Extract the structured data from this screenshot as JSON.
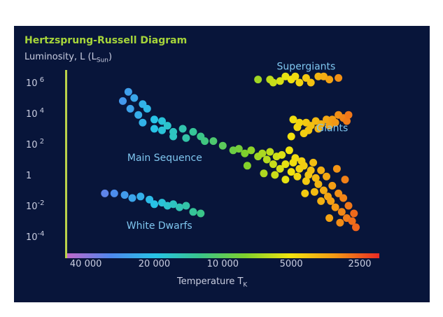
{
  "chart_data": {
    "type": "scatter",
    "title": "Hertzsprung-Russell Diagram",
    "ylabel": {
      "text": "Luminosity, L (L",
      "sub": "Sun",
      "close": ")"
    },
    "xlabel": {
      "text": "Temperature T",
      "sub": "K"
    },
    "x_scale": "log, reversed",
    "y_scale": "log",
    "x_ticks": [
      {
        "value": 40000,
        "label": "40 000"
      },
      {
        "value": 20000,
        "label": "20 000"
      },
      {
        "value": 10000,
        "label": "10 000"
      },
      {
        "value": 5000,
        "label": "5000"
      },
      {
        "value": 2500,
        "label": "2500"
      }
    ],
    "y_ticks": [
      {
        "value": 1000000,
        "base": "10",
        "exp": "6"
      },
      {
        "value": 10000,
        "base": "10",
        "exp": "4"
      },
      {
        "value": 100,
        "base": "10",
        "exp": "2"
      },
      {
        "value": 1,
        "base": "1",
        "exp": ""
      },
      {
        "value": 0.01,
        "base": "10",
        "exp": "-2"
      },
      {
        "value": 0.0001,
        "base": "10",
        "exp": "-4"
      }
    ],
    "colorbar": [
      "#c266c9",
      "#4f88ee",
      "#27c3e6",
      "#39c58a",
      "#7ed02d",
      "#f1e40f",
      "#f39a14",
      "#ea2a24"
    ],
    "annotations": [
      {
        "text": "Supergiants",
        "x": 4300,
        "logL": 6.85
      },
      {
        "text": "Giants",
        "x": 3300,
        "logL": 2.85
      },
      {
        "text": "Main Sequence",
        "x": 18000,
        "logL": 0.9
      },
      {
        "text": "White Dwarfs",
        "x": 19000,
        "logL": -3.5
      }
    ],
    "series": [
      {
        "points": [
          [
            26000,
            5.4
          ],
          [
            24500,
            5.0
          ],
          [
            27500,
            4.8
          ],
          [
            22500,
            4.6
          ],
          [
            25500,
            4.3
          ],
          [
            21500,
            4.3
          ],
          [
            23500,
            3.9
          ],
          [
            20000,
            3.6
          ],
          [
            22500,
            3.4
          ],
          [
            18500,
            3.5
          ],
          [
            17500,
            3.2
          ],
          [
            20000,
            3.0
          ],
          [
            18500,
            2.9
          ],
          [
            16500,
            2.8
          ],
          [
            15000,
            3.0
          ],
          [
            16500,
            2.5
          ],
          [
            14500,
            2.4
          ],
          [
            13500,
            2.8
          ],
          [
            12500,
            2.5
          ],
          [
            12000,
            2.2
          ],
          [
            11000,
            2.2
          ],
          [
            10000,
            1.9
          ],
          [
            9000,
            1.6
          ],
          [
            8500,
            1.7
          ],
          [
            8000,
            1.4
          ],
          [
            7500,
            1.6
          ],
          [
            7000,
            1.2
          ],
          [
            6700,
            1.4
          ],
          [
            6400,
            1.0
          ],
          [
            6200,
            1.5
          ],
          [
            6000,
            0.7
          ],
          [
            5800,
            1.2
          ],
          [
            5600,
            0.4
          ],
          [
            5500,
            1.3
          ],
          [
            5300,
            0.7
          ],
          [
            5100,
            1.6
          ],
          [
            5000,
            0.2
          ],
          [
            4900,
            0.8
          ],
          [
            4800,
            1.1
          ],
          [
            4700,
            -0.1
          ],
          [
            4600,
            0.4
          ],
          [
            4500,
            0.9
          ],
          [
            4400,
            0.6
          ],
          [
            4300,
            -0.4
          ],
          [
            4200,
            0.0
          ],
          [
            4100,
            0.3
          ],
          [
            4000,
            0.8
          ],
          [
            3900,
            -0.2
          ],
          [
            3800,
            -0.6
          ],
          [
            3700,
            0.3
          ],
          [
            3600,
            -1.0
          ],
          [
            3500,
            -0.1
          ],
          [
            3450,
            -1.4
          ],
          [
            3350,
            -1.7
          ],
          [
            3300,
            -0.7
          ],
          [
            3200,
            -2.1
          ],
          [
            3100,
            -1.2
          ],
          [
            3000,
            -2.4
          ],
          [
            2950,
            -1.5
          ],
          [
            2850,
            -2.8
          ],
          [
            2800,
            -2.0
          ],
          [
            2700,
            -3.0
          ],
          [
            2650,
            -2.5
          ],
          [
            2600,
            -3.4
          ],
          [
            3150,
            0.4
          ],
          [
            2900,
            -0.3
          ],
          [
            3950,
            -1.1
          ],
          [
            5900,
            0.0
          ],
          [
            4350,
            -1.2
          ],
          [
            7800,
            0.6
          ],
          [
            6600,
            0.1
          ],
          [
            5300,
            -0.3
          ],
          [
            3700,
            -1.7
          ],
          [
            3400,
            -2.8
          ],
          [
            3050,
            -3.1
          ]
        ]
      },
      {
        "points": [
          [
            7000,
            6.2
          ],
          [
            6200,
            6.2
          ],
          [
            5600,
            6.1
          ],
          [
            5300,
            6.4
          ],
          [
            5000,
            6.2
          ],
          [
            4800,
            6.4
          ],
          [
            4600,
            6.0
          ],
          [
            4300,
            6.3
          ],
          [
            4100,
            6.0
          ],
          [
            3800,
            6.4
          ],
          [
            3600,
            6.4
          ],
          [
            3400,
            6.2
          ],
          [
            3100,
            6.3
          ],
          [
            6000,
            6.0
          ]
        ]
      },
      {
        "points": [
          [
            4900,
            3.6
          ],
          [
            4700,
            3.1
          ],
          [
            4600,
            3.4
          ],
          [
            4300,
            3.4
          ],
          [
            4200,
            2.9
          ],
          [
            4100,
            3.2
          ],
          [
            3900,
            3.5
          ],
          [
            3800,
            3.0
          ],
          [
            3700,
            3.3
          ],
          [
            3500,
            3.6
          ],
          [
            3400,
            3.2
          ],
          [
            3300,
            3.6
          ],
          [
            3200,
            3.4
          ],
          [
            3100,
            3.9
          ],
          [
            2950,
            3.7
          ],
          [
            2850,
            3.5
          ],
          [
            2800,
            3.9
          ],
          [
            5000,
            2.5
          ],
          [
            4400,
            2.7
          ]
        ]
      },
      {
        "points": [
          [
            33000,
            -1.2
          ],
          [
            30000,
            -1.2
          ],
          [
            27000,
            -1.3
          ],
          [
            25000,
            -1.5
          ],
          [
            23000,
            -1.4
          ],
          [
            21000,
            -1.6
          ],
          [
            20000,
            -1.9
          ],
          [
            18500,
            -1.8
          ],
          [
            17500,
            -2.0
          ],
          [
            16500,
            -1.9
          ],
          [
            15500,
            -2.1
          ],
          [
            14500,
            -2.0
          ],
          [
            13500,
            -2.4
          ],
          [
            12500,
            -2.5
          ]
        ]
      }
    ]
  }
}
